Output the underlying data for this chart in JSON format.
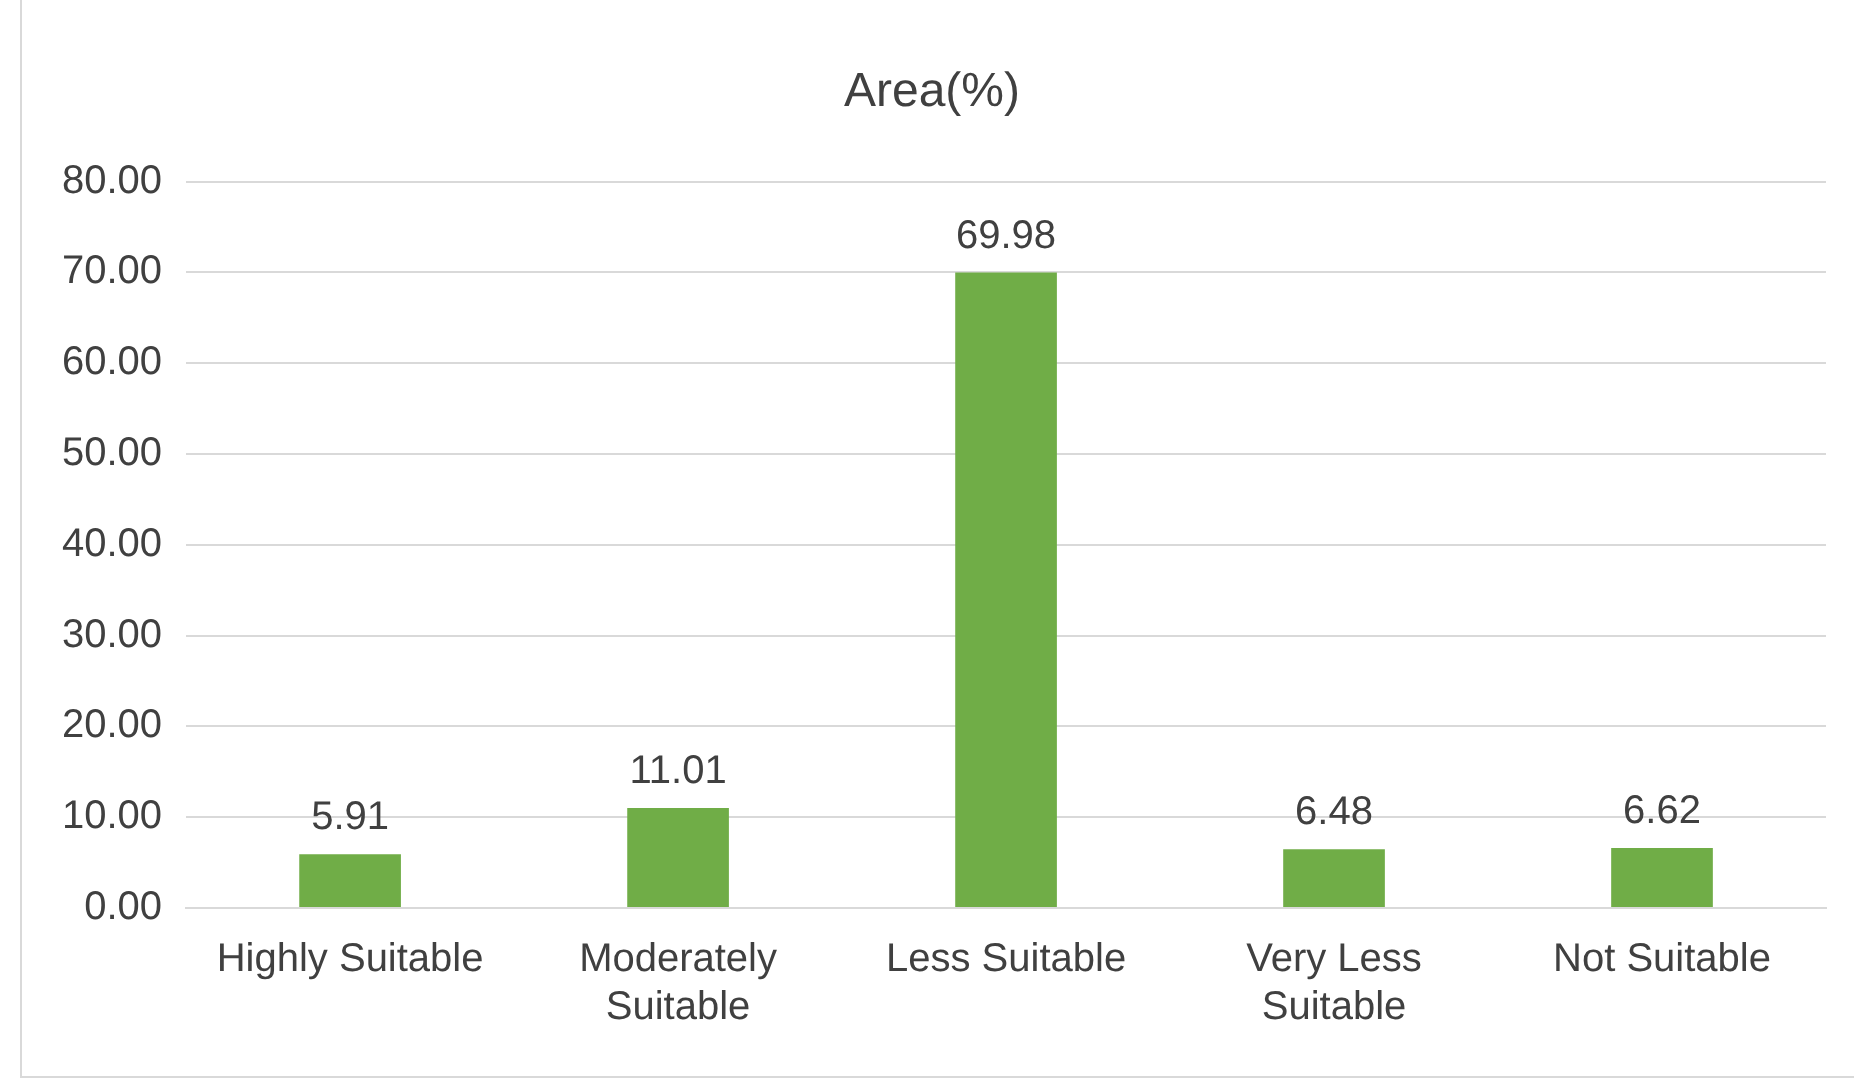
{
  "chart_data": {
    "type": "bar",
    "title": "Area(%)",
    "categories": [
      "Highly Suitable",
      "Moderately Suitable",
      "Less Suitable",
      "Very Less Suitable",
      "Not Suitable"
    ],
    "values": [
      5.91,
      11.01,
      69.98,
      6.48,
      6.62
    ],
    "color": "#70ad47",
    "ylim": [
      0,
      80
    ],
    "yticks": [
      {
        "value": 0,
        "label": "0.00"
      },
      {
        "value": 10,
        "label": "10.00"
      },
      {
        "value": 20,
        "label": "20.00"
      },
      {
        "value": 30,
        "label": "30.00"
      },
      {
        "value": 40,
        "label": "40.00"
      },
      {
        "value": 50,
        "label": "50.00"
      },
      {
        "value": 60,
        "label": "60.00"
      },
      {
        "value": 70,
        "label": "70.00"
      },
      {
        "value": 80,
        "label": "80.00"
      }
    ],
    "grid": "y",
    "data_labels": true,
    "legend": false
  }
}
